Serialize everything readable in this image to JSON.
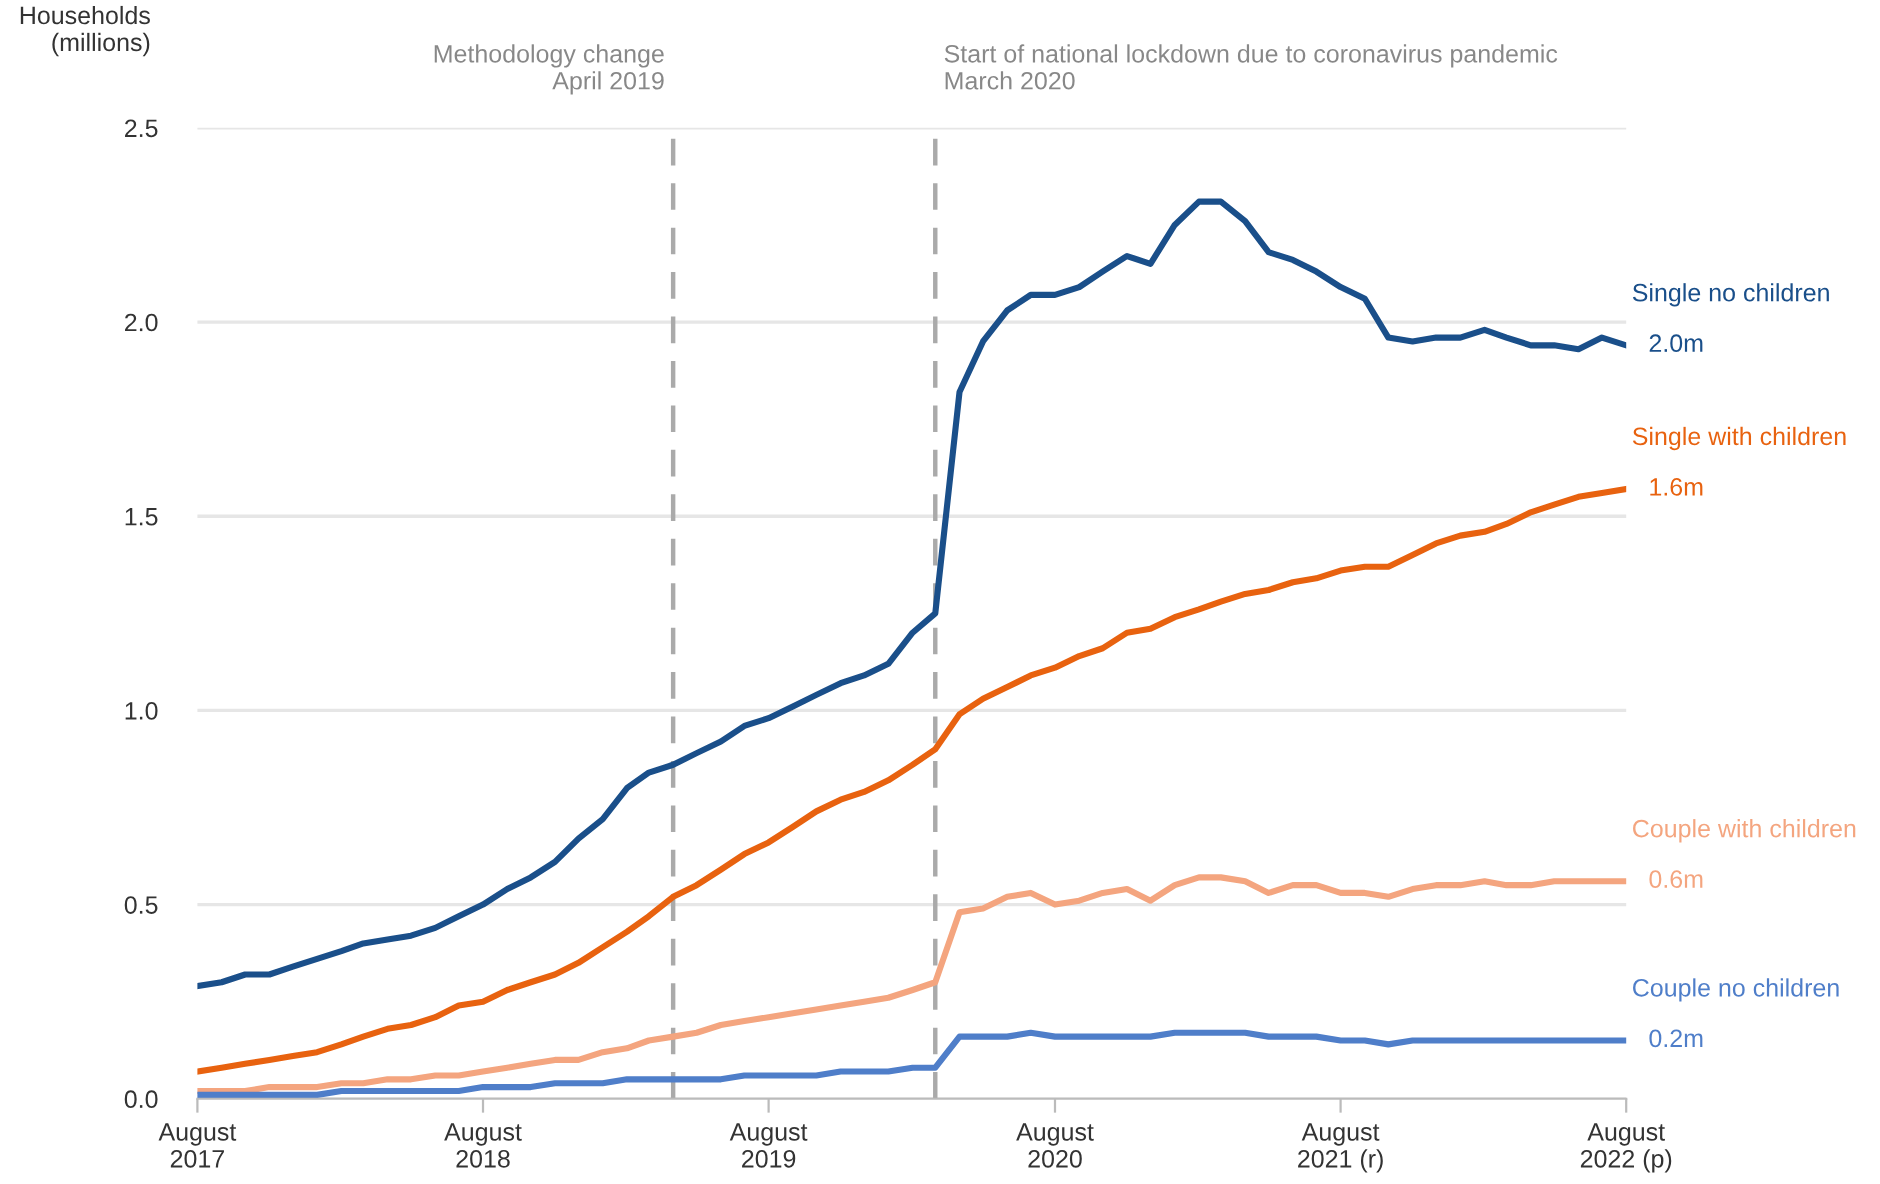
{
  "chart_data": {
    "type": "line",
    "ylabel": "Households\n(millions)",
    "x": [
      "2017-08",
      "2017-09",
      "2017-10",
      "2017-11",
      "2017-12",
      "2018-01",
      "2018-02",
      "2018-03",
      "2018-04",
      "2018-05",
      "2018-06",
      "2018-07",
      "2018-08",
      "2018-09",
      "2018-10",
      "2018-11",
      "2018-12",
      "2019-01",
      "2019-02",
      "2019-03",
      "2019-04",
      "2019-05",
      "2019-06",
      "2019-07",
      "2019-08",
      "2019-09",
      "2019-10",
      "2019-11",
      "2019-12",
      "2020-01",
      "2020-02",
      "2020-03",
      "2020-04",
      "2020-05",
      "2020-06",
      "2020-07",
      "2020-08",
      "2020-09",
      "2020-10",
      "2020-11",
      "2020-12",
      "2021-01",
      "2021-02",
      "2021-03",
      "2021-04",
      "2021-05",
      "2021-06",
      "2021-07",
      "2021-08",
      "2021-09",
      "2021-10",
      "2021-11",
      "2021-12",
      "2022-01",
      "2022-02",
      "2022-03",
      "2022-04",
      "2022-05",
      "2022-06",
      "2022-07",
      "2022-08"
    ],
    "series": [
      {
        "name": "Single no children",
        "color": "#1a4f8a",
        "values": [
          0.29,
          0.3,
          0.32,
          0.32,
          0.34,
          0.36,
          0.38,
          0.4,
          0.41,
          0.42,
          0.44,
          0.47,
          0.5,
          0.54,
          0.57,
          0.61,
          0.67,
          0.72,
          0.8,
          0.84,
          0.86,
          0.89,
          0.92,
          0.96,
          0.98,
          1.01,
          1.04,
          1.07,
          1.09,
          1.12,
          1.2,
          1.25,
          1.82,
          1.95,
          2.03,
          2.07,
          2.07,
          2.09,
          2.13,
          2.17,
          2.15,
          2.25,
          2.31,
          2.31,
          2.26,
          2.18,
          2.16,
          2.13,
          2.09,
          2.06,
          1.96,
          1.95,
          1.96,
          1.96,
          1.98,
          1.96,
          1.94,
          1.94,
          1.93,
          1.96,
          1.94
        ]
      },
      {
        "name": "Single with children",
        "color": "#e8620f",
        "values": [
          0.07,
          0.08,
          0.09,
          0.1,
          0.11,
          0.12,
          0.14,
          0.16,
          0.18,
          0.19,
          0.21,
          0.24,
          0.25,
          0.28,
          0.3,
          0.32,
          0.35,
          0.39,
          0.43,
          0.47,
          0.52,
          0.55,
          0.59,
          0.63,
          0.66,
          0.7,
          0.74,
          0.77,
          0.79,
          0.82,
          0.86,
          0.9,
          0.99,
          1.03,
          1.06,
          1.09,
          1.11,
          1.14,
          1.16,
          1.2,
          1.21,
          1.24,
          1.26,
          1.28,
          1.3,
          1.31,
          1.33,
          1.34,
          1.36,
          1.37,
          1.37,
          1.4,
          1.43,
          1.45,
          1.46,
          1.48,
          1.51,
          1.53,
          1.55,
          1.56,
          1.57
        ]
      },
      {
        "name": "Couple with children",
        "color": "#f4a57f",
        "values": [
          0.02,
          0.02,
          0.02,
          0.03,
          0.03,
          0.03,
          0.04,
          0.04,
          0.05,
          0.05,
          0.06,
          0.06,
          0.07,
          0.08,
          0.09,
          0.1,
          0.1,
          0.12,
          0.13,
          0.15,
          0.16,
          0.17,
          0.19,
          0.2,
          0.21,
          0.22,
          0.23,
          0.24,
          0.25,
          0.26,
          0.28,
          0.3,
          0.48,
          0.49,
          0.52,
          0.53,
          0.5,
          0.51,
          0.53,
          0.54,
          0.51,
          0.55,
          0.57,
          0.57,
          0.56,
          0.53,
          0.55,
          0.55,
          0.53,
          0.53,
          0.52,
          0.54,
          0.55,
          0.55,
          0.56,
          0.55,
          0.55,
          0.56,
          0.56,
          0.56,
          0.56
        ]
      },
      {
        "name": "Couple no children",
        "color": "#4f7ec9",
        "values": [
          0.01,
          0.01,
          0.01,
          0.01,
          0.01,
          0.01,
          0.02,
          0.02,
          0.02,
          0.02,
          0.02,
          0.02,
          0.03,
          0.03,
          0.03,
          0.04,
          0.04,
          0.04,
          0.05,
          0.05,
          0.05,
          0.05,
          0.05,
          0.06,
          0.06,
          0.06,
          0.06,
          0.07,
          0.07,
          0.07,
          0.08,
          0.08,
          0.16,
          0.16,
          0.16,
          0.17,
          0.16,
          0.16,
          0.16,
          0.16,
          0.16,
          0.17,
          0.17,
          0.17,
          0.17,
          0.16,
          0.16,
          0.16,
          0.15,
          0.15,
          0.14,
          0.15,
          0.15,
          0.15,
          0.15,
          0.15,
          0.15,
          0.15,
          0.15,
          0.15,
          0.15
        ]
      }
    ],
    "annotations": [
      {
        "text": "2.0m",
        "x": "2022-08",
        "y": 1.94
      },
      {
        "text": "1.6m",
        "x": "2022-08",
        "y": 1.57
      },
      {
        "text": "0.6m",
        "x": "2022-08",
        "y": 0.56
      },
      {
        "text": "0.2m",
        "x": "2022-08",
        "y": 0.15
      }
    ],
    "ref_lines": [
      {
        "axis": "x",
        "value": "2019-04",
        "label": "Methodology change\nApril 2019",
        "color": "#aaaaaa",
        "line_style": "dashed"
      },
      {
        "axis": "x",
        "value": "2020-03",
        "label": "Start of national lockdown due to coronavirus pandemic\nMarch 2020",
        "color": "#aaaaaa",
        "line_style": "dashed"
      }
    ],
    "xlim": [
      "2017-08",
      "2022-08"
    ],
    "xticks": [
      {
        "value": "2017-08",
        "label": "August\n2017"
      },
      {
        "value": "2018-08",
        "label": "August\n2018"
      },
      {
        "value": "2019-08",
        "label": "August\n2019"
      },
      {
        "value": "2020-08",
        "label": "August\n2020"
      },
      {
        "value": "2021-08",
        "label": "August\n2021 (r)"
      },
      {
        "value": "2022-08",
        "label": "August\n2022 (p)"
      }
    ],
    "ylim": [
      0,
      2.5
    ],
    "yticks": [
      {
        "value": 0,
        "label": "0.0"
      },
      0.5,
      {
        "value": 1,
        "label": "1.0"
      },
      1.5,
      {
        "value": 2,
        "label": "2.0"
      },
      2.5
    ],
    "grid": "y",
    "legend": false,
    "marker": "none",
    "line_style": "solid"
  }
}
